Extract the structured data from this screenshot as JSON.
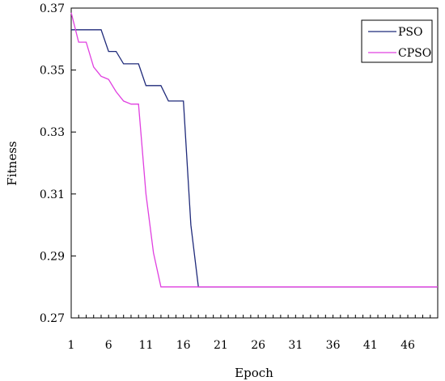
{
  "chart_data": {
    "type": "line",
    "title": "",
    "xlabel": "Epoch",
    "ylabel": "Fitness",
    "xlim": [
      1,
      50
    ],
    "ylim": [
      0.27,
      0.37
    ],
    "x_ticks": [
      "1",
      "6",
      "11",
      "16",
      "21",
      "26",
      "31",
      "36",
      "41",
      "46"
    ],
    "y_ticks": [
      "0.27",
      "0.29",
      "0.31",
      "0.33",
      "0.35",
      "0.37"
    ],
    "grid": false,
    "legend_position": "top-right",
    "x": [
      1,
      2,
      3,
      4,
      5,
      6,
      7,
      8,
      9,
      10,
      11,
      12,
      13,
      14,
      15,
      16,
      17,
      18,
      19,
      20,
      21,
      22,
      23,
      24,
      25,
      26,
      27,
      28,
      29,
      30,
      31,
      32,
      33,
      34,
      35,
      36,
      37,
      38,
      39,
      40,
      41,
      42,
      43,
      44,
      45,
      46,
      47,
      48,
      49,
      50
    ],
    "series": [
      {
        "name": "PSO",
        "color": "#1f2a7a",
        "values": [
          0.363,
          0.363,
          0.363,
          0.363,
          0.363,
          0.356,
          0.356,
          0.352,
          0.352,
          0.352,
          0.345,
          0.345,
          0.345,
          0.34,
          0.34,
          0.34,
          0.3,
          0.28,
          0.28,
          0.28,
          0.28,
          0.28,
          0.28,
          0.28,
          0.28,
          0.28,
          0.28,
          0.28,
          0.28,
          0.28,
          0.28,
          0.28,
          0.28,
          0.28,
          0.28,
          0.28,
          0.28,
          0.28,
          0.28,
          0.28,
          0.28,
          0.28,
          0.28,
          0.28,
          0.28,
          0.28,
          0.28,
          0.28,
          0.28,
          0.28
        ]
      },
      {
        "name": "CPSO",
        "color": "#e040e0",
        "values": [
          0.3685,
          0.359,
          0.359,
          0.351,
          0.348,
          0.347,
          0.343,
          0.34,
          0.339,
          0.339,
          0.31,
          0.291,
          0.28,
          0.28,
          0.28,
          0.28,
          0.28,
          0.28,
          0.28,
          0.28,
          0.28,
          0.28,
          0.28,
          0.28,
          0.28,
          0.28,
          0.28,
          0.28,
          0.28,
          0.28,
          0.28,
          0.28,
          0.28,
          0.28,
          0.28,
          0.28,
          0.28,
          0.28,
          0.28,
          0.28,
          0.28,
          0.28,
          0.28,
          0.28,
          0.28,
          0.28,
          0.28,
          0.28,
          0.28,
          0.28
        ]
      }
    ]
  }
}
